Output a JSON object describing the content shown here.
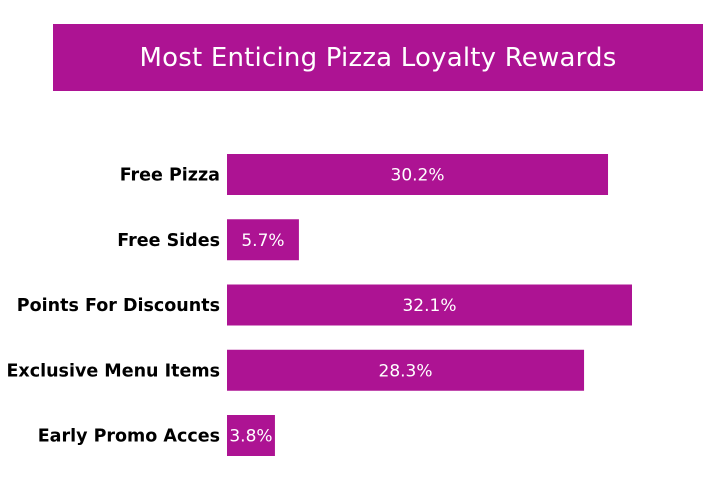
{
  "colors": {
    "accent": "#AD1393",
    "title_text": "#FFFFFF",
    "label_text": "#000000",
    "value_text": "#FFFFFF"
  },
  "chart_data": {
    "type": "bar",
    "orientation": "horizontal",
    "title": "Most Enticing Pizza Loyalty Rewards",
    "categories": [
      "Free Pizza",
      "Free Sides",
      "Points For Discounts",
      "Exclusive Menu Items",
      "Early Promo Acces"
    ],
    "values": [
      30.2,
      5.7,
      32.1,
      28.3,
      3.8
    ],
    "value_labels": [
      "30.2%",
      "5.7%",
      "32.1%",
      "28.3%",
      "3.8%"
    ],
    "unit": "%",
    "xlim": [
      0,
      32.1
    ],
    "grid": false,
    "legend": "none"
  }
}
